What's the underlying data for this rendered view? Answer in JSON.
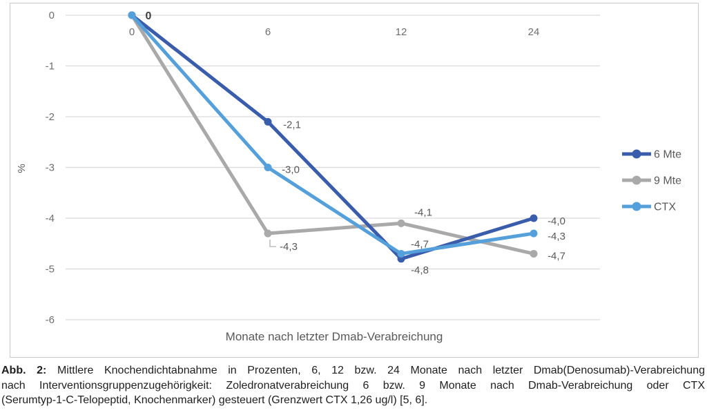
{
  "figure": {
    "caption": {
      "prefix": "Abb. 2:",
      "line1": " Mittlere Knochendichtabnahme in Prozenten, 6, 12 bzw. 24 Monate nach letzter Dmab(Denosumab)-Verabreichung",
      "line2": "nach Interventionsgruppenzugehörigkeit: Zoledronatverabreichung 6 bzw. 9 Monate nach Dmab-Verabreichung oder CTX",
      "line3": "(Serumtyp-1-C-Telopeptid, Knochenmarker) gesteuert (Grenzwert CTX 1,26 ug/l) [5, 6]."
    }
  },
  "chart_data": {
    "type": "line",
    "title": "",
    "xlabel": "Monate nach letzter Dmab-Verabreichung",
    "ylabel": "%",
    "categories": [
      0,
      6,
      12,
      24
    ],
    "x_tick_labels": [
      "0",
      "6",
      "12",
      "24"
    ],
    "y_ticks": [
      "0",
      "-1",
      "-2",
      "-3",
      "-4",
      "-5",
      "-6"
    ],
    "ylim": [
      -6,
      0
    ],
    "grid": "horizontal-only",
    "legend_position": "right",
    "colors": {
      "gridline": "#d9d9d9",
      "frame_border": "#c9c9c9",
      "tick_text": "#6e6e6e",
      "label_text": "#595959",
      "series_6mte": "#3a5dab",
      "series_9mte": "#a9a9a9",
      "series_ctx": "#55a0da"
    },
    "series": [
      {
        "name": "6 Mte",
        "color": "#3a5dab",
        "values": [
          0,
          -2.1,
          -4.8,
          -4.0
        ],
        "labels": [
          "0",
          "-2,1",
          "-4,8",
          "-4,0"
        ]
      },
      {
        "name": "9 Mte",
        "color": "#a9a9a9",
        "values": [
          0,
          -4.3,
          -4.1,
          -4.7
        ],
        "labels": [
          "",
          "-4,3",
          "-4,1",
          "-4,7"
        ]
      },
      {
        "name": "CTX",
        "color": "#55a0da",
        "values": [
          0,
          -3.0,
          -4.7,
          -4.3
        ],
        "labels": [
          "",
          "-3,0",
          "-4,7",
          "-4,3"
        ]
      }
    ]
  }
}
